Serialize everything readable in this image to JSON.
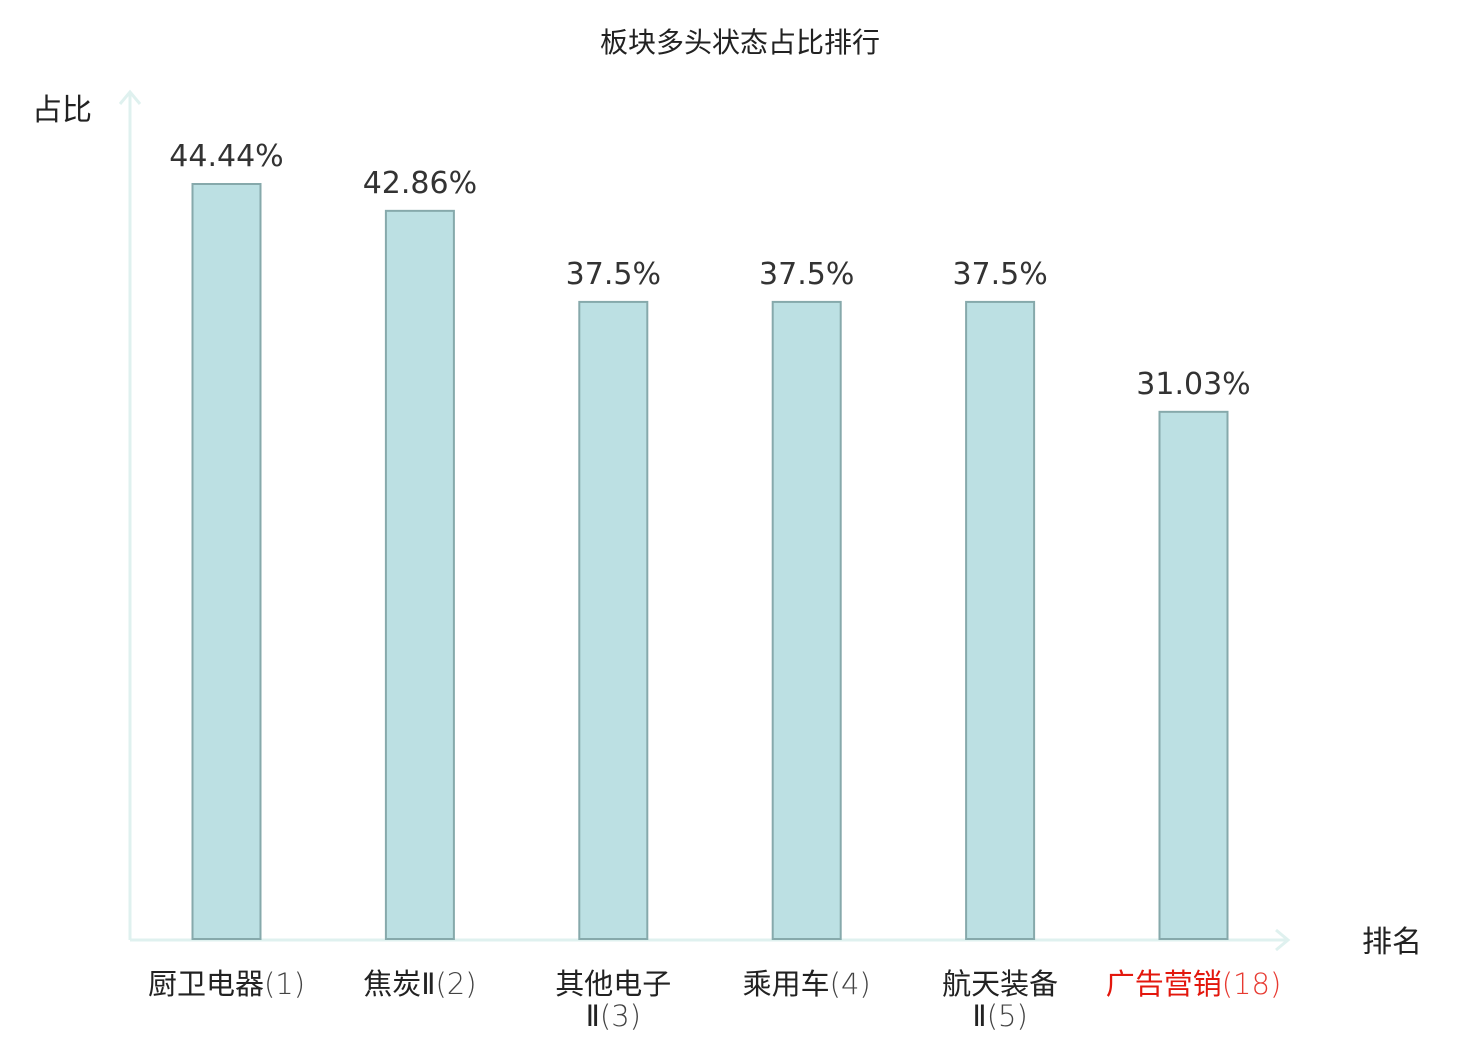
{
  "chart_data": {
    "type": "bar",
    "title": "板块多头状态占比排行",
    "ylabel": "占比",
    "xlabel": "排名",
    "ylim": [
      0,
      50
    ],
    "grid": false,
    "categories": [
      {
        "name": "厨卫电器",
        "rank_text": "(1)"
      },
      {
        "name": "焦炭Ⅱ",
        "rank_text": "(2)"
      },
      {
        "name": "其他电子",
        "line2": "Ⅱ",
        "rank_text": "(3)"
      },
      {
        "name": "乘用车",
        "rank_text": "(4)"
      },
      {
        "name": "航天装备",
        "line2": "Ⅱ",
        "rank_text": "(5)"
      },
      {
        "name": "广告营销",
        "rank_text": "(18)",
        "highlight": true
      }
    ],
    "values": [
      44.44,
      42.86,
      37.5,
      37.5,
      37.5,
      31.03
    ],
    "value_labels": [
      "44.44%",
      "42.86%",
      "37.5%",
      "37.5%",
      "37.5%",
      "31.03%"
    ],
    "colors": {
      "bar_fill": "#bce0e3",
      "bar_stroke": "#86a9ab",
      "axis": "#dff1ef",
      "highlight_text": "#e3170d",
      "text": "#222222"
    }
  }
}
